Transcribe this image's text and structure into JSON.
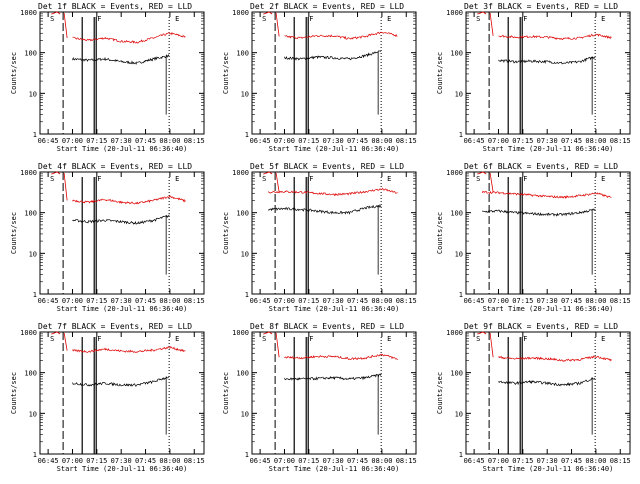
{
  "colors": {
    "events": "#000000",
    "lld": "#dd0000",
    "axes": "#000000",
    "background": "#ffffff"
  },
  "shared": {
    "xlabel": "Start Time (20-Jul-11 06:36:40)",
    "ylabel": "Counts/sec",
    "x_tick_labels": [
      "06:45",
      "07:00",
      "07:15",
      "07:30",
      "07:45",
      "08:00",
      "08:15"
    ],
    "y_tick_labels": [
      "1",
      "10",
      "100",
      "1000"
    ]
  },
  "chart_data": [
    {
      "type": "line",
      "title": "Det 1f BLACK = Events, RED = LLD",
      "xlabel": "Start Time (20-Jul-11 06:36:40)",
      "ylabel": "Counts/sec",
      "y_scale": "log",
      "ylim": [
        1,
        1000
      ],
      "x_ticks": [
        "06:45",
        "07:00",
        "07:15",
        "07:30",
        "07:45",
        "08:00",
        "08:15"
      ],
      "y_ticks": [
        "1",
        "10",
        "100",
        "1000"
      ],
      "x": [
        "06:50",
        "07:00",
        "07:10",
        "07:20",
        "07:30",
        "07:40",
        "07:50",
        "08:00",
        "08:10"
      ],
      "series": [
        {
          "name": "Events",
          "color": "#000000",
          "values": [
            null,
            70,
            65,
            70,
            60,
            55,
            70,
            85,
            null
          ]
        },
        {
          "name": "LLD",
          "color": "#dd0000",
          "values": [
            null,
            230,
            200,
            230,
            190,
            180,
            230,
            300,
            240
          ]
        }
      ],
      "flags": [
        {
          "label": "S",
          "time": "06:45"
        },
        {
          "label": "F",
          "time": "07:14"
        },
        {
          "label": "E",
          "time": "08:02"
        }
      ]
    },
    {
      "type": "line",
      "title": "Det 2f BLACK = Events, RED = LLD",
      "xlabel": "Start Time (20-Jul-11 06:36:40)",
      "ylabel": "Counts/sec",
      "y_scale": "log",
      "ylim": [
        1,
        1000
      ],
      "x_ticks": [
        "06:45",
        "07:00",
        "07:15",
        "07:30",
        "07:45",
        "08:00",
        "08:15"
      ],
      "y_ticks": [
        "1",
        "10",
        "100",
        "1000"
      ],
      "x": [
        "06:50",
        "07:00",
        "07:10",
        "07:20",
        "07:30",
        "07:40",
        "07:50",
        "08:00",
        "08:10"
      ],
      "series": [
        {
          "name": "Events",
          "color": "#000000",
          "values": [
            null,
            75,
            70,
            78,
            75,
            70,
            85,
            110,
            null
          ]
        },
        {
          "name": "LLD",
          "color": "#dd0000",
          "values": [
            null,
            250,
            230,
            260,
            260,
            220,
            250,
            320,
            260
          ]
        }
      ],
      "flags": [
        {
          "label": "S",
          "time": "06:45"
        },
        {
          "label": "F",
          "time": "07:14"
        },
        {
          "label": "E",
          "time": "08:02"
        }
      ]
    },
    {
      "type": "line",
      "title": "Det 3f BLACK = Events, RED = LLD",
      "xlabel": "Start Time (20-Jul-11 06:36:40)",
      "ylabel": "Counts/sec",
      "y_scale": "log",
      "ylim": [
        1,
        1000
      ],
      "x_ticks": [
        "06:45",
        "07:00",
        "07:15",
        "07:30",
        "07:45",
        "08:00",
        "08:15"
      ],
      "y_ticks": [
        "1",
        "10",
        "100",
        "1000"
      ],
      "x": [
        "06:50",
        "07:00",
        "07:10",
        "07:20",
        "07:30",
        "07:40",
        "07:50",
        "08:00",
        "08:10"
      ],
      "series": [
        {
          "name": "Events",
          "color": "#000000",
          "values": [
            null,
            65,
            60,
            62,
            60,
            55,
            60,
            80,
            null
          ]
        },
        {
          "name": "LLD",
          "color": "#dd0000",
          "values": [
            null,
            260,
            240,
            250,
            240,
            220,
            230,
            280,
            230
          ]
        }
      ],
      "flags": [
        {
          "label": "S",
          "time": "06:45"
        },
        {
          "label": "F",
          "time": "07:14"
        },
        {
          "label": "E",
          "time": "08:02"
        }
      ]
    },
    {
      "type": "line",
      "title": "Det 4f BLACK = Events, RED = LLD",
      "xlabel": "Start Time (20-Jul-11 06:36:40)",
      "ylabel": "Counts/sec",
      "y_scale": "log",
      "ylim": [
        1,
        1000
      ],
      "x_ticks": [
        "06:45",
        "07:00",
        "07:15",
        "07:30",
        "07:45",
        "08:00",
        "08:15"
      ],
      "y_ticks": [
        "1",
        "10",
        "100",
        "1000"
      ],
      "x": [
        "06:50",
        "07:00",
        "07:10",
        "07:20",
        "07:30",
        "07:40",
        "07:50",
        "08:00",
        "08:10"
      ],
      "series": [
        {
          "name": "Events",
          "color": "#000000",
          "values": [
            null,
            65,
            60,
            65,
            60,
            55,
            65,
            85,
            null
          ]
        },
        {
          "name": "LLD",
          "color": "#dd0000",
          "values": [
            null,
            200,
            180,
            210,
            180,
            170,
            200,
            250,
            190
          ]
        }
      ],
      "flags": [
        {
          "label": "S",
          "time": "06:45"
        },
        {
          "label": "F",
          "time": "07:14"
        },
        {
          "label": "E",
          "time": "08:02"
        }
      ]
    },
    {
      "type": "line",
      "title": "Det 5f BLACK = Events, RED = LLD",
      "xlabel": "Start Time (20-Jul-11 06:36:40)",
      "ylabel": "Counts/sec",
      "y_scale": "log",
      "ylim": [
        1,
        1000
      ],
      "x_ticks": [
        "06:45",
        "07:00",
        "07:15",
        "07:30",
        "07:45",
        "08:00",
        "08:15"
      ],
      "y_ticks": [
        "1",
        "10",
        "100",
        "1000"
      ],
      "x": [
        "06:45",
        "06:50",
        "07:00",
        "07:10",
        "07:20",
        "07:30",
        "07:40",
        "07:50",
        "08:00",
        "08:10"
      ],
      "series": [
        {
          "name": "Events",
          "color": "#000000",
          "values": [
            null,
            120,
            125,
            120,
            110,
            100,
            100,
            130,
            150,
            null
          ]
        },
        {
          "name": "LLD",
          "color": "#dd0000",
          "values": [
            null,
            320,
            330,
            320,
            300,
            280,
            290,
            330,
            380,
            300
          ]
        }
      ],
      "flags": [
        {
          "label": "S",
          "time": "06:45"
        },
        {
          "label": "F",
          "time": "07:14"
        },
        {
          "label": "E",
          "time": "08:02"
        }
      ]
    },
    {
      "type": "line",
      "title": "Det 6f BLACK = Events, RED = LLD",
      "xlabel": "Start Time (20-Jul-11 06:36:40)",
      "ylabel": "Counts/sec",
      "y_scale": "log",
      "ylim": [
        1,
        1000
      ],
      "x_ticks": [
        "06:45",
        "07:00",
        "07:15",
        "07:30",
        "07:45",
        "08:00",
        "08:15"
      ],
      "y_ticks": [
        "1",
        "10",
        "100",
        "1000"
      ],
      "x": [
        "06:45",
        "06:50",
        "07:00",
        "07:10",
        "07:20",
        "07:30",
        "07:40",
        "07:50",
        "08:00",
        "08:10"
      ],
      "series": [
        {
          "name": "Events",
          "color": "#000000",
          "values": [
            null,
            105,
            110,
            100,
            95,
            90,
            90,
            100,
            120,
            null
          ]
        },
        {
          "name": "LLD",
          "color": "#dd0000",
          "values": [
            null,
            320,
            310,
            290,
            270,
            250,
            240,
            260,
            300,
            230
          ]
        }
      ],
      "flags": [
        {
          "label": "S",
          "time": "06:45"
        },
        {
          "label": "F",
          "time": "07:14"
        },
        {
          "label": "E",
          "time": "08:02"
        }
      ]
    },
    {
      "type": "line",
      "title": "Det 7f BLACK = Events, RED = LLD",
      "xlabel": "Start Time (20-Jul-11 06:36:40)",
      "ylabel": "Counts/sec",
      "y_scale": "log",
      "ylim": [
        1,
        1000
      ],
      "x_ticks": [
        "06:45",
        "07:00",
        "07:15",
        "07:30",
        "07:45",
        "08:00",
        "08:15"
      ],
      "y_ticks": [
        "1",
        "10",
        "100",
        "1000"
      ],
      "x": [
        "06:50",
        "07:00",
        "07:10",
        "07:20",
        "07:30",
        "07:40",
        "07:50",
        "08:00",
        "08:10"
      ],
      "series": [
        {
          "name": "Events",
          "color": "#000000",
          "values": [
            null,
            55,
            50,
            55,
            50,
            50,
            60,
            80,
            null
          ]
        },
        {
          "name": "LLD",
          "color": "#dd0000",
          "values": [
            null,
            350,
            330,
            380,
            340,
            330,
            360,
            420,
            330
          ]
        }
      ],
      "flags": [
        {
          "label": "S",
          "time": "06:45"
        },
        {
          "label": "F",
          "time": "07:14"
        },
        {
          "label": "E",
          "time": "08:02"
        }
      ]
    },
    {
      "type": "line",
      "title": "Det 8f BLACK = Events, RED = LLD",
      "xlabel": "Start Time (20-Jul-11 06:36:40)",
      "ylabel": "Counts/sec",
      "y_scale": "log",
      "ylim": [
        1,
        1000
      ],
      "x_ticks": [
        "06:45",
        "07:00",
        "07:15",
        "07:30",
        "07:45",
        "08:00",
        "08:15"
      ],
      "y_ticks": [
        "1",
        "10",
        "100",
        "1000"
      ],
      "x": [
        "06:50",
        "07:00",
        "07:10",
        "07:20",
        "07:30",
        "07:40",
        "07:50",
        "08:00",
        "08:10"
      ],
      "series": [
        {
          "name": "Events",
          "color": "#000000",
          "values": [
            null,
            70,
            70,
            72,
            75,
            70,
            75,
            90,
            null
          ]
        },
        {
          "name": "LLD",
          "color": "#dd0000",
          "values": [
            null,
            240,
            230,
            250,
            250,
            220,
            230,
            280,
            210
          ]
        }
      ],
      "flags": [
        {
          "label": "S",
          "time": "06:45"
        },
        {
          "label": "F",
          "time": "07:14"
        },
        {
          "label": "E",
          "time": "08:02"
        }
      ]
    },
    {
      "type": "line",
      "title": "Det 9f BLACK = Events, RED = LLD",
      "xlabel": "Start Time (20-Jul-11 06:36:40)",
      "ylabel": "Counts/sec",
      "y_scale": "log",
      "ylim": [
        1,
        1000
      ],
      "x_ticks": [
        "06:45",
        "07:00",
        "07:15",
        "07:30",
        "07:45",
        "08:00",
        "08:15"
      ],
      "y_ticks": [
        "1",
        "10",
        "100",
        "1000"
      ],
      "x": [
        "06:50",
        "07:00",
        "07:10",
        "07:20",
        "07:30",
        "07:40",
        "07:50",
        "08:00",
        "08:10"
      ],
      "series": [
        {
          "name": "Events",
          "color": "#000000",
          "values": [
            null,
            60,
            55,
            60,
            55,
            50,
            55,
            75,
            null
          ]
        },
        {
          "name": "LLD",
          "color": "#dd0000",
          "values": [
            null,
            240,
            220,
            230,
            220,
            200,
            210,
            250,
            200
          ]
        }
      ],
      "flags": [
        {
          "label": "S",
          "time": "06:45"
        },
        {
          "label": "F",
          "time": "07:14"
        },
        {
          "label": "E",
          "time": "08:02"
        }
      ]
    }
  ]
}
